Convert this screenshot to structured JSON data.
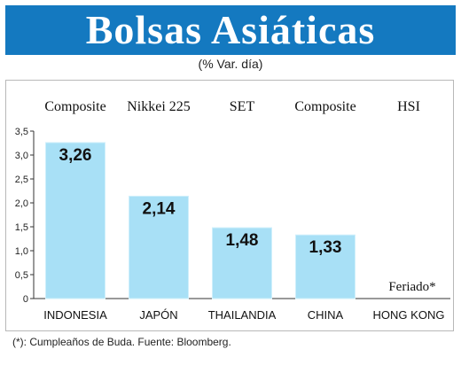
{
  "header": {
    "title": "Bolsas Asiáticas",
    "subtitle": "(% Var. día)"
  },
  "footnote": "(*): Cumpleaños de Buda. Fuente: Bloomberg.",
  "colors": {
    "banner": "#1479c0",
    "bar": "#a8e0f6",
    "bar_edge": "#cfeffb"
  },
  "chart_data": {
    "type": "bar",
    "title": "Bolsas Asiáticas",
    "subtitle": "(% Var. día)",
    "categories": [
      "INDONESIA",
      "JAPÓN",
      "THAILANDIA",
      "CHINA",
      "HONG KONG"
    ],
    "index_names": [
      "Composite",
      "Nikkei 225",
      "SET",
      "Composite",
      "HSI"
    ],
    "values": [
      3.26,
      2.14,
      1.48,
      1.33,
      null
    ],
    "value_labels": [
      "3,26",
      "2,14",
      "1,48",
      "1,33",
      "Feriado*"
    ],
    "ylim": [
      0,
      3.5
    ],
    "yticks": [
      0,
      0.5,
      1.0,
      1.5,
      2.0,
      2.5,
      3.0,
      3.5
    ],
    "ytick_labels": [
      "0",
      "0,5",
      "1,0",
      "1,5",
      "2,0",
      "2,5",
      "3,0",
      "3,5"
    ],
    "grid": false,
    "legend": "none"
  }
}
